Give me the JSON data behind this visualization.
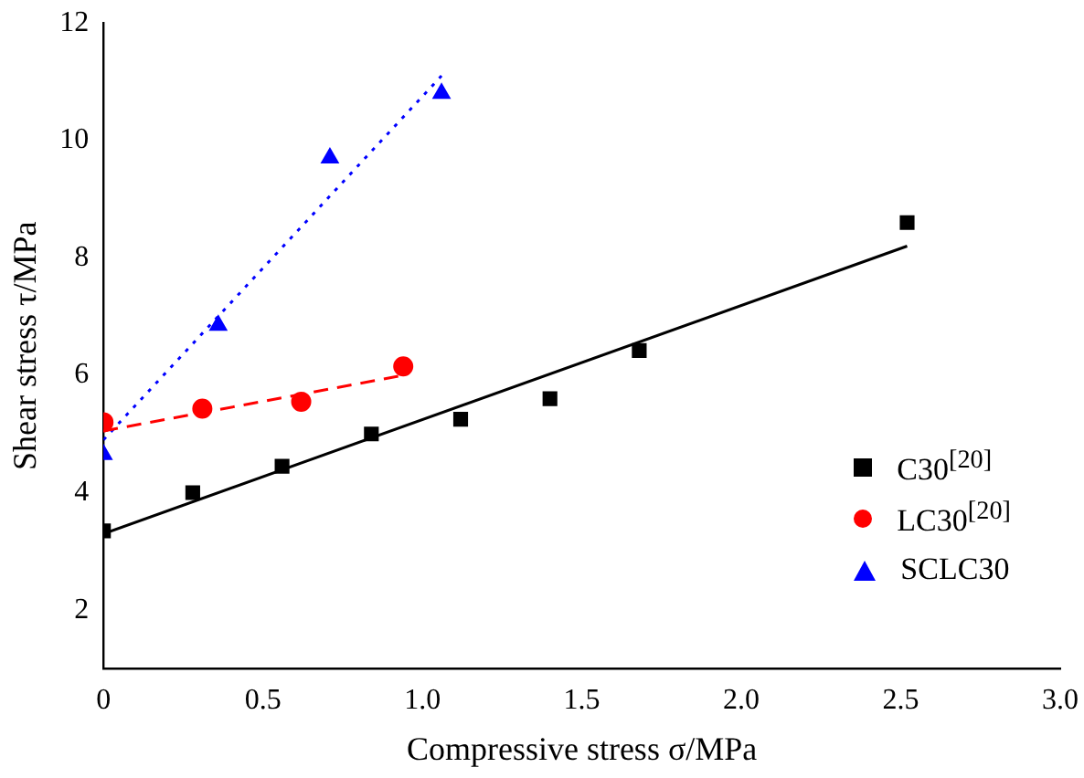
{
  "chart_data": {
    "type": "scatter",
    "xlabel": "Compressive stress σ/MPa",
    "ylabel": "Shear stress τ/MPa",
    "xlim": [
      0,
      3
    ],
    "xticks": [
      0,
      0.5,
      {
        "value": 1,
        "label": "1.0"
      },
      1.5,
      {
        "value": 2,
        "label": "2.0"
      },
      2.5,
      {
        "value": 3,
        "label": "3.0"
      }
    ],
    "ylim": [
      1,
      12
    ],
    "yticks": [
      2,
      4,
      6,
      8,
      10,
      12
    ],
    "grid": false,
    "legend": "bottom right",
    "series": [
      {
        "name": "C30$^{[20]}$",
        "marker": "square",
        "color": "#000000",
        "x": [
          0,
          0.28,
          0.56,
          0.84,
          1.12,
          1.4,
          1.68,
          2.52
        ],
        "values": [
          3.35,
          4.0,
          4.45,
          5.0,
          5.25,
          5.6,
          6.42,
          8.6
        ]
      },
      {
        "name": "LC30$^{[20]}$",
        "marker": "circle",
        "color": "#ff0000",
        "x": [
          0,
          0.31,
          0.62,
          0.94
        ],
        "values": [
          5.2,
          5.43,
          5.55,
          6.15
        ]
      },
      {
        "name": "SCLC30",
        "marker": "triangle",
        "color": "#0000ff",
        "x": [
          0,
          0.36,
          0.71,
          1.06
        ],
        "values": [
          4.65,
          6.85,
          9.7,
          10.8
        ]
      },
      {
        "type": "line",
        "marker": "none",
        "line_style": "solid",
        "color": "#000000",
        "x": [
          0,
          2.52
        ],
        "values": [
          3.3,
          8.2
        ]
      },
      {
        "type": "line",
        "marker": "none",
        "line_style": "dashed",
        "color": "#ff0000",
        "x": [
          0,
          0.94
        ],
        "values": [
          5.05,
          6.0
        ]
      },
      {
        "type": "line",
        "marker": "none",
        "line_style": "dotted",
        "color": "#0000ff",
        "x": [
          0,
          1.06
        ],
        "values": [
          4.9,
          11.1
        ]
      }
    ]
  }
}
